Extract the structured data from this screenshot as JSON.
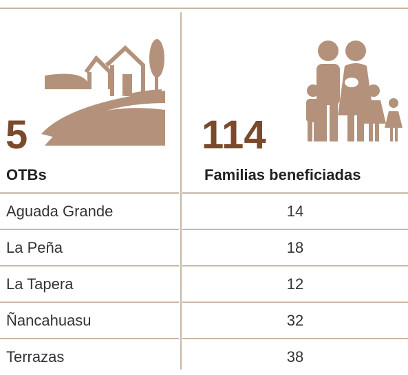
{
  "summary": [
    {
      "value": 5,
      "label": "OTBs"
    },
    {
      "value": 114,
      "label": "Familias beneficiadas"
    }
  ],
  "table": {
    "rows": [
      [
        "Aguada Grande",
        14
      ],
      [
        "La Peña",
        18
      ],
      [
        "La Tapera",
        12
      ],
      [
        "Ñancahuasu",
        32
      ],
      [
        "Terrazas",
        38
      ]
    ]
  }
}
